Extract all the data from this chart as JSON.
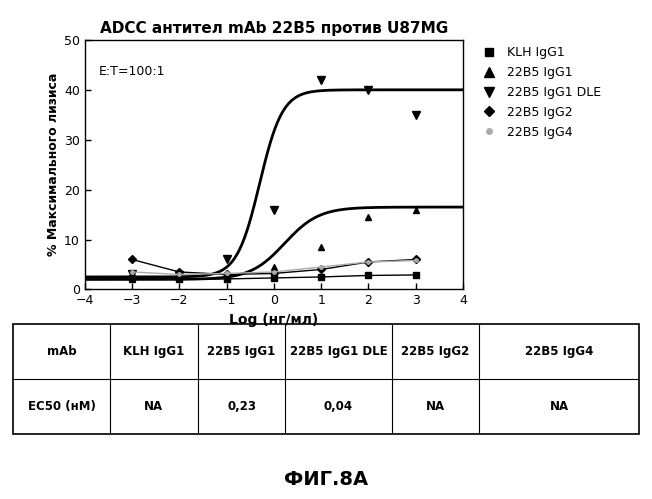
{
  "title": "ADCC антител mAb 22B5 против U87MG",
  "xlabel": "Log (нг/мл)",
  "ylabel": "% Максимального лизиса",
  "annotation": "E:T=100:1",
  "xlim": [
    -4,
    4
  ],
  "ylim": [
    0,
    50
  ],
  "xticks": [
    -4,
    -3,
    -2,
    -1,
    0,
    1,
    2,
    3,
    4
  ],
  "yticks": [
    0,
    10,
    20,
    30,
    40,
    50
  ],
  "series": [
    {
      "name": "KLH IgG1",
      "color": "#000000",
      "marker": "s",
      "markersize": 5,
      "fit": false,
      "x_data": [
        -3,
        -2,
        -1,
        0,
        1,
        2,
        3
      ],
      "y_data": [
        2.2,
        2.0,
        2.1,
        2.3,
        2.5,
        2.8,
        2.9
      ],
      "line_connect": true,
      "linewidth": 1.0
    },
    {
      "name": "22B5 IgG1",
      "color": "#000000",
      "marker": "^",
      "markersize": 5,
      "fit": true,
      "ec50_log": 0.23,
      "top": 16.5,
      "bottom": 2.0,
      "hillslope": 1.2,
      "linewidth": 2.0,
      "x_data": [
        -3,
        -2,
        -1,
        0,
        1,
        2,
        3
      ],
      "y_data": [
        2.0,
        2.2,
        2.5,
        4.5,
        8.5,
        14.5,
        16.0
      ],
      "line_connect": false
    },
    {
      "name": "22B5 IgG1 DLE",
      "color": "#000000",
      "marker": "v",
      "markersize": 6,
      "fit": true,
      "ec50_log": -0.3,
      "top": 40.0,
      "bottom": 2.5,
      "hillslope": 1.8,
      "linewidth": 2.0,
      "x_data": [
        -3,
        -2,
        -1,
        0,
        1,
        2,
        3
      ],
      "y_data": [
        3.0,
        2.8,
        6.0,
        16.0,
        42.0,
        40.0,
        35.0
      ],
      "line_connect": false
    },
    {
      "name": "22B5 IgG2",
      "color": "#000000",
      "marker": "D",
      "markersize": 4,
      "fit": false,
      "x_data": [
        -3,
        -2,
        -1,
        0,
        1,
        2,
        3
      ],
      "y_data": [
        6.0,
        3.5,
        3.0,
        3.2,
        4.0,
        5.5,
        6.0
      ],
      "line_connect": true,
      "linewidth": 1.0
    },
    {
      "name": "22B5 IgG4",
      "color": "#aaaaaa",
      "marker": ".",
      "markersize": 5,
      "fit": false,
      "x_data": [
        -3,
        -2,
        -1,
        0,
        1,
        2,
        3
      ],
      "y_data": [
        3.5,
        3.0,
        3.2,
        3.5,
        4.5,
        5.5,
        5.8
      ],
      "line_connect": true,
      "linewidth": 1.0
    }
  ],
  "legend_markers": [
    "s",
    "^",
    "v",
    "D",
    "."
  ],
  "legend_colors": [
    "#000000",
    "#000000",
    "#000000",
    "#000000",
    "#aaaaaa"
  ],
  "legend_names": [
    "KLH IgG1",
    "22B5 IgG1",
    "22B5 IgG1 DLE",
    "22B5 IgG2",
    "22B5 IgG4"
  ],
  "legend_sizes": [
    6,
    7,
    7,
    5,
    8
  ],
  "table_cols": [
    "mAb",
    "KLH IgG1",
    "22B5 IgG1",
    "22B5 IgG1 DLE",
    "22B5 IgG2",
    "22B5 IgG4"
  ],
  "table_ec50": [
    "EC50 (нМ)",
    "NA",
    "0,23",
    "0,04",
    "NA",
    "NA"
  ],
  "fig_label": "ФИГ.8А",
  "background_color": "#ffffff"
}
